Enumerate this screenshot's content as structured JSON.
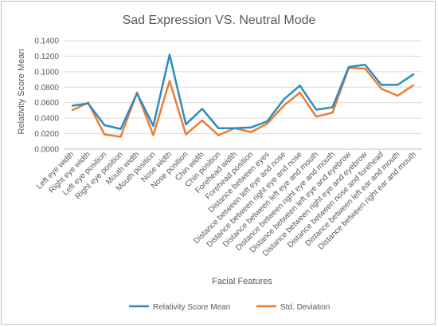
{
  "chart_data": {
    "type": "line",
    "title": "Sad Expression VS. Neutral Mode",
    "xlabel": "Facial Features",
    "ylabel": "Relativity Score Mean",
    "ylim": [
      0,
      0.14
    ],
    "yticks": [
      "0.0000",
      "0.0200",
      "0.0400",
      "0.0600",
      "0.0800",
      "0.1000",
      "0.1200",
      "0.1400"
    ],
    "grid": true,
    "legend_position": "bottom",
    "categories": [
      "Left eye width",
      "Right eye width",
      "Left eye position",
      "Right eye position",
      "Mouth width",
      "Mouth position",
      "Nose width",
      "Nose position",
      "Chin width",
      "Chin position",
      "Forehead width",
      "Forehead position",
      "Distance between eyes",
      "Distance between left eye and nose",
      "Distance between right eye and nose",
      "Distance between left eye and mouth",
      "Distance between right eye and mouth",
      "Distance between left eye and eyebrow",
      "Distance between right eye and eyebrow",
      "Distance between nose and forehead",
      "Distance between left ear and mouth",
      "Distance between right ear and mouth"
    ],
    "series": [
      {
        "name": "Relativity Score Mean",
        "color": "#2e8bc0",
        "values": [
          0.056,
          0.059,
          0.031,
          0.026,
          0.072,
          0.03,
          0.122,
          0.032,
          0.052,
          0.027,
          0.027,
          0.028,
          0.036,
          0.064,
          0.082,
          0.051,
          0.054,
          0.106,
          0.109,
          0.083,
          0.083,
          0.097
        ]
      },
      {
        "name": "Std. Deviation",
        "color": "#ed7d31",
        "values": [
          0.05,
          0.06,
          0.019,
          0.016,
          0.073,
          0.018,
          0.088,
          0.019,
          0.037,
          0.018,
          0.027,
          0.022,
          0.033,
          0.056,
          0.073,
          0.042,
          0.047,
          0.105,
          0.104,
          0.078,
          0.069,
          0.083
        ]
      }
    ]
  }
}
